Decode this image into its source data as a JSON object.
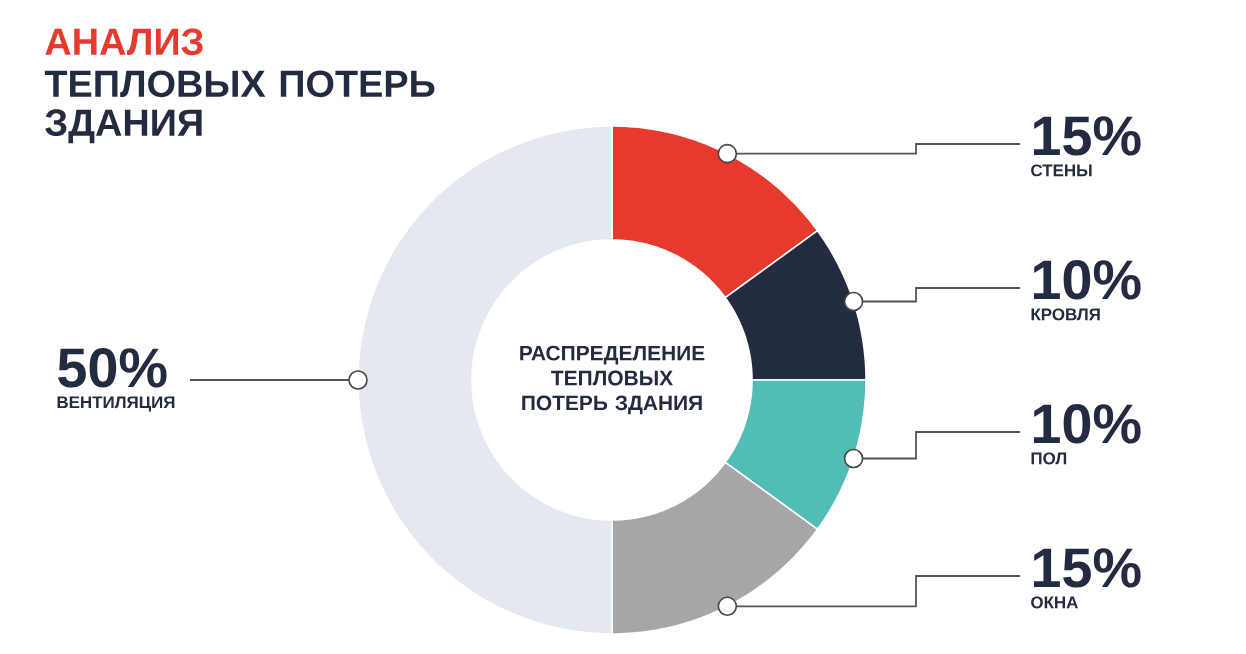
{
  "chart_data": {
    "type": "donut",
    "title": "АНАЛИЗ",
    "subtitle": "ТЕПЛОВЫХ ПОТЕРЬ ЗДАНИЯ",
    "annotations": [
      "РАСПРЕДЕЛЕНИЕ ТЕПЛОВЫХ ПОТЕРЬ ЗДАНИЯ"
    ],
    "categories": [
      "СТЕНЫ",
      "КРОВЛЯ",
      "ПОЛ",
      "ОКНА",
      "ВЕНТИЛЯЦИЯ"
    ],
    "values": [
      15,
      10,
      10,
      15,
      50
    ],
    "value_labels": [
      "15%",
      "10%",
      "10%",
      "15%",
      "50%"
    ],
    "colors": [
      "#e63a2e",
      "#222b3f",
      "#52bdb5",
      "#a6a6a6",
      "#e4e8f1"
    ]
  }
}
